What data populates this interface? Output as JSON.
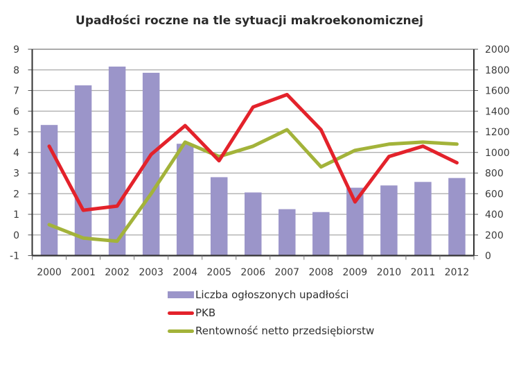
{
  "chart_data": {
    "type": "bar+line",
    "title": "Upadłości roczne na tle sytuacji makroekonomicznej",
    "categories": [
      "2000",
      "2001",
      "2002",
      "2003",
      "2004",
      "2005",
      "2006",
      "2007",
      "2008",
      "2009",
      "2010",
      "2011",
      "2012"
    ],
    "left_axis": {
      "min": -1,
      "max": 9,
      "ticks": [
        "9",
        "8",
        "7",
        "6",
        "5",
        "4",
        "3",
        "2",
        "1",
        "0",
        "-1"
      ]
    },
    "right_axis": {
      "min": 0,
      "max": 2000,
      "ticks": [
        "2000",
        "1800",
        "1600",
        "1400",
        "1200",
        "1000",
        "800",
        "600",
        "400",
        "200",
        "0"
      ]
    },
    "grid": true,
    "legend_position": "bottom",
    "series": [
      {
        "name": "Liczba ogłoszonych upadłości",
        "type": "bar",
        "axis": "right",
        "color": "#9b95c9",
        "values": [
          1266,
          1650,
          1832,
          1772,
          1084,
          760,
          612,
          450,
          422,
          658,
          680,
          714,
          752
        ]
      },
      {
        "name": "PKB",
        "type": "line",
        "axis": "left",
        "color": "#e3222b",
        "values": [
          4.3,
          1.2,
          1.4,
          3.9,
          5.3,
          3.6,
          6.2,
          6.8,
          5.1,
          1.6,
          3.8,
          4.3,
          3.5
        ]
      },
      {
        "name": "Rentowność netto przedsiębiorstw",
        "type": "line",
        "axis": "left",
        "color": "#a3b33a",
        "values": [
          0.5,
          -0.15,
          -0.3,
          2.0,
          4.5,
          3.8,
          4.3,
          5.1,
          3.3,
          4.1,
          4.4,
          4.5,
          4.4
        ]
      }
    ]
  },
  "legend": {
    "items": [
      {
        "label": "Liczba ogłoszonych upadłości"
      },
      {
        "label": "PKB"
      },
      {
        "label": "Rentowność netto przedsiębiorstw"
      }
    ]
  }
}
